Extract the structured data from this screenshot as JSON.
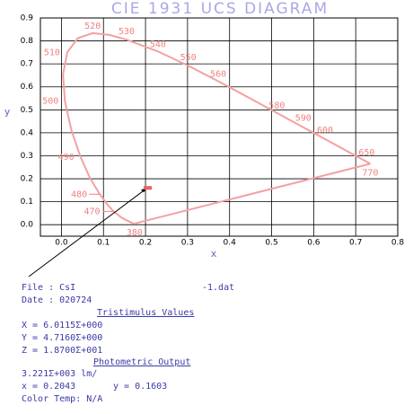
{
  "chart_data": {
    "type": "line",
    "title": "CIE  1931  UCS  DIAGRAM",
    "xlabel": "x",
    "ylabel": "y",
    "xlim": [
      -0.05,
      0.8
    ],
    "ylim": [
      -0.05,
      0.9
    ],
    "xticks": [
      {
        "value": 0,
        "label": "0.0"
      },
      0.1,
      0.2,
      0.3,
      0.4,
      0.5,
      0.6,
      0.7,
      0.8
    ],
    "yticks": [
      {
        "value": 0,
        "label": "0.0"
      },
      0.1,
      0.2,
      0.3,
      0.4,
      0.5,
      0.6,
      0.7,
      0.8,
      0.9
    ],
    "grid": true,
    "series": [
      {
        "color": "#f4a0a0",
        "x": [
          0.1741,
          0.1733,
          0.169,
          0.1566,
          0.144,
          0.1241,
          0.1096,
          0.0913,
          0.0687,
          0.0454,
          0.0235,
          0.0082,
          0.0039,
          0.0139,
          0.0389,
          0.0743,
          0.1142,
          0.1547,
          0.2296,
          0.3016,
          0.3731,
          0.4441,
          0.5125,
          0.5752,
          0.627,
          0.6915,
          0.726,
          0.7347
        ],
        "values": [
          0.005,
          0.0048,
          0.0069,
          0.0177,
          0.0297,
          0.0578,
          0.0868,
          0.1327,
          0.2007,
          0.295,
          0.4127,
          0.5384,
          0.6548,
          0.7502,
          0.812,
          0.8338,
          0.8262,
          0.8059,
          0.7543,
          0.6923,
          0.6245,
          0.5547,
          0.4866,
          0.4242,
          0.3725,
          0.3083,
          0.274,
          0.2653
        ]
      }
    ],
    "wavelength_labels": [
      {
        "label": "380",
        "x": 0.1741,
        "y": 0.005
      },
      {
        "label": "470",
        "x": 0.1241,
        "y": 0.0578
      },
      {
        "label": "480",
        "x": 0.0913,
        "y": 0.1327
      },
      {
        "label": "490",
        "x": 0.0454,
        "y": 0.295
      },
      {
        "label": "500",
        "x": 0.0082,
        "y": 0.5384
      },
      {
        "label": "510",
        "x": 0.0139,
        "y": 0.7502
      },
      {
        "label": "520",
        "x": 0.0743,
        "y": 0.8338
      },
      {
        "label": "530",
        "x": 0.1547,
        "y": 0.8059
      },
      {
        "label": "540",
        "x": 0.2296,
        "y": 0.7543
      },
      {
        "label": "550",
        "x": 0.3016,
        "y": 0.6923
      },
      {
        "label": "560",
        "x": 0.3731,
        "y": 0.6245
      },
      {
        "label": "580",
        "x": 0.5125,
        "y": 0.4866
      },
      {
        "label": "590",
        "x": 0.5752,
        "y": 0.4242
      },
      {
        "label": "600",
        "x": 0.627,
        "y": 0.3725
      },
      {
        "label": "650",
        "x": 0.726,
        "y": 0.274
      },
      {
        "label": "770",
        "x": 0.7347,
        "y": 0.2653
      }
    ],
    "sample": {
      "x": 0.2043,
      "y": 0.1603,
      "color": "#f06060"
    }
  },
  "info": {
    "file": "File : CsI",
    "file_suffix": "-1.dat",
    "date": "Date : 020724",
    "tristimulus_title": "Tristimulus Values",
    "X": "X = 6.0115Σ+000",
    "Y": "Y = 4.7160Σ+000",
    "Z": "Z = 1.8700Σ+001",
    "photometric_title": "Photometric Output",
    "lumens": "3.221Σ+003 lm/",
    "x": "x = 0.2043",
    "y": "y = 0.1603",
    "color_temp": "Color Temp: N/A"
  }
}
